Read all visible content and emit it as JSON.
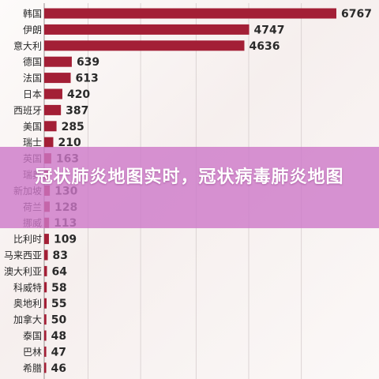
{
  "banner": {
    "title": "冠状肺炎地图实时，冠状病毒肺炎地图"
  },
  "colors": {
    "bar": "#a31f36",
    "overlay": "#cd78c8",
    "grid": "#dcd4d4",
    "text": "#2a2a2a"
  },
  "chart_data": {
    "type": "bar",
    "orientation": "horizontal",
    "categories": [
      "韩国",
      "伊朗",
      "意大利",
      "德国",
      "法国",
      "日本",
      "西班牙",
      "美国",
      "瑞士",
      "英国",
      "瑞典",
      "新加坡",
      "荷兰",
      "挪威",
      "比利时",
      "马来西亚",
      "澳大利亚",
      "科威特",
      "奥地利",
      "加拿大",
      "泰国",
      "巴林",
      "希腊"
    ],
    "values": [
      6767,
      4747,
      4636,
      639,
      613,
      420,
      387,
      285,
      210,
      163,
      137,
      130,
      128,
      113,
      109,
      83,
      64,
      58,
      55,
      50,
      48,
      47,
      46
    ],
    "value_labels": [
      "6767",
      "4747",
      "4636",
      "639",
      "613",
      "420",
      "387",
      "285",
      "210",
      "163",
      "",
      "130",
      "128",
      "113",
      "109",
      "83",
      "64",
      "58",
      "55",
      "50",
      "48",
      "47",
      "46"
    ],
    "title": "",
    "xlabel": "",
    "ylabel": "",
    "grid": true,
    "legend": "none"
  }
}
